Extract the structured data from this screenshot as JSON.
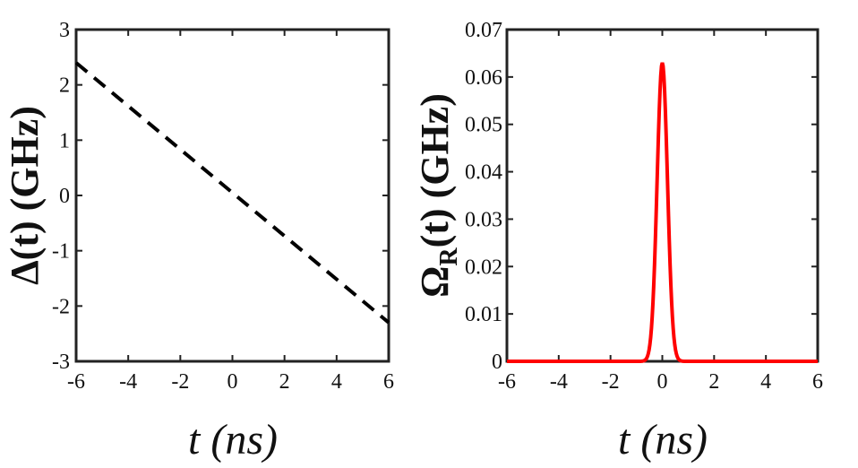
{
  "chart_data": [
    {
      "type": "line",
      "xlabel": "t (ns)",
      "ylabel": "Δ(t) (GHz)",
      "xlim": [
        -6,
        6
      ],
      "ylim": [
        -3,
        3
      ],
      "xticks": [
        "-6",
        "-4",
        "-2",
        "0",
        "2",
        "4",
        "6"
      ],
      "yticks": [
        "3",
        "2",
        "1",
        "0",
        "-1",
        "-2",
        "-3"
      ],
      "grid": false,
      "series": [
        {
          "color": "#000000",
          "style": "dashed",
          "x": [
            -6,
            6
          ],
          "y": [
            2.4,
            -2.3
          ]
        }
      ]
    },
    {
      "type": "line",
      "xlabel": "t (ns)",
      "ylabel": "Ω_R(t) (GHz)",
      "xlim": [
        -6,
        6
      ],
      "ylim": [
        0,
        0.07
      ],
      "xticks": [
        "-6",
        "-4",
        "-2",
        "0",
        "2",
        "4",
        "6"
      ],
      "yticks": [
        "0.07",
        "0.06",
        "0.05",
        "0.04",
        "0.03",
        "0.02",
        "0.01",
        "0"
      ],
      "grid": false,
      "series": [
        {
          "color": "#ff0000",
          "style": "solid",
          "peak": 0.063,
          "center": 0,
          "sigma": 0.2,
          "x": [
            -6,
            -4,
            -2,
            -1,
            -0.6,
            -0.4,
            -0.3,
            -0.2,
            -0.1,
            0,
            0.1,
            0.2,
            0.3,
            0.4,
            0.6,
            1,
            2,
            4,
            6
          ],
          "y": [
            0,
            0,
            0,
            0,
            0.0007,
            0.0085,
            0.0205,
            0.0382,
            0.0556,
            0.063,
            0.0556,
            0.0382,
            0.0205,
            0.0085,
            0.0007,
            0,
            0,
            0,
            0
          ]
        }
      ]
    }
  ]
}
